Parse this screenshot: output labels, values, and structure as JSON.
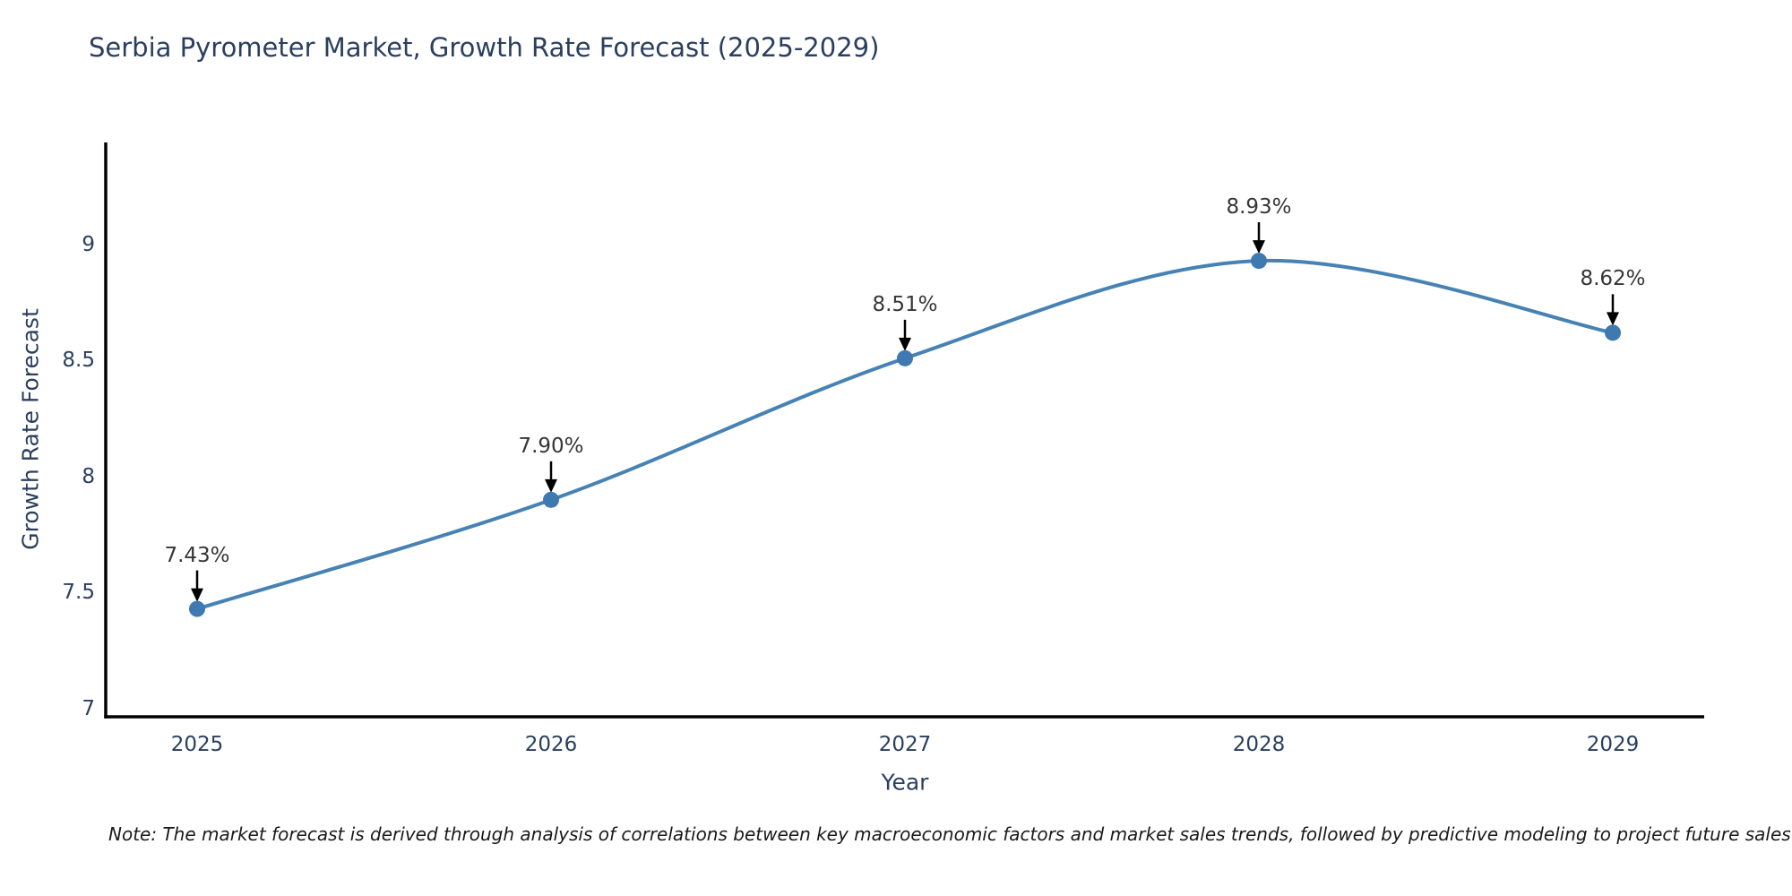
{
  "title": "Serbia Pyrometer Market, Growth Rate Forecast (2025-2029)",
  "note": "Note: The market forecast is derived through analysis of correlations between key macroeconomic factors and market sales trends, followed by predictive modeling to project future sales",
  "chart_data": {
    "type": "line",
    "title": "Serbia Pyrometer Market, Growth Rate Forecast (2025-2029)",
    "xlabel": "Year",
    "ylabel": "Growth Rate Forecast",
    "categories": [
      "2025",
      "2026",
      "2027",
      "2028",
      "2029"
    ],
    "series": [
      {
        "name": "Growth Rate Forecast",
        "values": [
          7.43,
          7.9,
          8.51,
          8.93,
          8.62
        ],
        "point_labels": [
          "7.43%",
          "7.90%",
          "8.51%",
          "8.93%",
          "8.62%"
        ]
      }
    ],
    "line_shape": "spline",
    "markers": true,
    "annotations_arrows": true,
    "yticks": [
      7,
      7.5,
      8,
      8.5,
      9
    ],
    "ytick_labels": [
      "7",
      "7.5",
      "8",
      "8.5",
      "9"
    ],
    "ylim": [
      6.965,
      9.44
    ],
    "grid": false,
    "legend_position": "none",
    "colors": {
      "line": "#4682b4",
      "marker": "#3e7ab1",
      "axis": "#000000",
      "text": "#2a3f5f",
      "annotation_text": "#363636",
      "annotation_arrow": "#000000",
      "background": "#ffffff"
    }
  }
}
